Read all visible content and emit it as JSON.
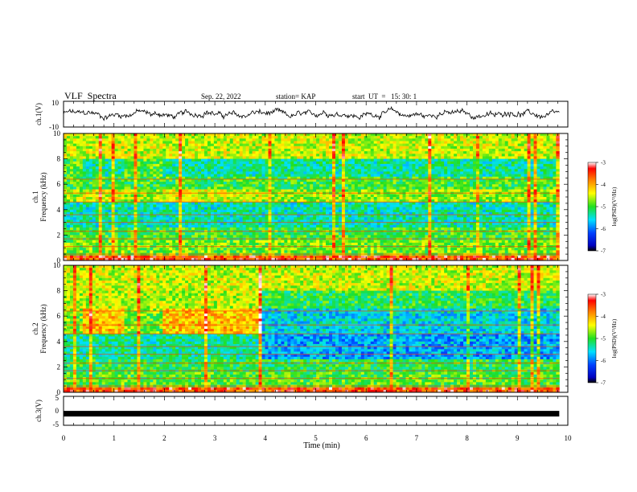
{
  "header": {
    "title": "VLF  Spectra",
    "date": "Sep. 22, 2022",
    "station": "station= KAP",
    "start_time": "start  UT  =   15: 30: 1"
  },
  "chart_data": [
    {
      "type": "line",
      "panel": "ch1-waveform",
      "ylabel": "ch.1(V)",
      "ylim": [
        -10,
        10
      ],
      "y_ticks": [
        "10",
        "-10"
      ],
      "x_range_min": [
        0,
        9.83
      ],
      "description_values": {
        "mean": 0,
        "amplitude_approx": 4
      }
    },
    {
      "type": "heatmap",
      "panel": "ch1-spectrogram",
      "ylabel_line1": "ch.1",
      "ylabel_line2": "Frequency (kHz)",
      "ylim": [
        0,
        10
      ],
      "y_ticks": [
        "0",
        "2",
        "4",
        "6",
        "8",
        "10"
      ],
      "x_range_min": [
        0,
        9.83
      ],
      "colorbar": {
        "label": "log(PSD)(V²/Hz)",
        "range": [
          -7,
          -3
        ],
        "ticks": [
          "-3",
          "-4",
          "-5",
          "-6",
          "-7"
        ]
      },
      "segments_min": [
        0,
        0.4,
        1.2,
        1.95,
        3.95,
        9.83
      ]
    },
    {
      "type": "heatmap",
      "panel": "ch2-spectrogram",
      "ylabel_line1": "ch.2",
      "ylabel_line2": "Frequency (kHz)",
      "ylim": [
        0,
        10
      ],
      "y_ticks": [
        "0",
        "2",
        "4",
        "6",
        "8",
        "10"
      ],
      "x_range_min": [
        0,
        9.83
      ],
      "colorbar": {
        "label": "log(PSD)(V²/Hz)",
        "range": [
          -7,
          -3
        ],
        "ticks": [
          "-3",
          "-4",
          "-5",
          "-6",
          "-7"
        ]
      },
      "segments_min": [
        0,
        0.4,
        1.2,
        1.95,
        3.95,
        9.83
      ]
    },
    {
      "type": "line",
      "panel": "ch3-waveform",
      "ylabel": "ch.3(V)",
      "ylim": [
        -5,
        5
      ],
      "y_ticks": [
        "5",
        "0",
        "-5"
      ],
      "x_range_min": [
        0,
        9.83
      ],
      "level_V": -1
    }
  ],
  "x_axis": {
    "label": "Time  (min)",
    "range": [
      0,
      10
    ],
    "ticks": [
      "0",
      "1",
      "2",
      "3",
      "4",
      "5",
      "6",
      "7",
      "8",
      "9",
      "10"
    ]
  }
}
